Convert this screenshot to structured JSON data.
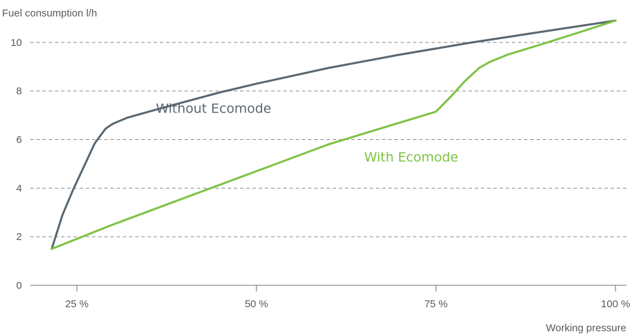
{
  "chart_data": {
    "type": "line",
    "ylabel": "Fuel consumption l/h",
    "xlabel": "Working pressure",
    "xlim": [
      18.5,
      101.5
    ],
    "ylim": [
      0,
      10.9
    ],
    "x_ticks": [
      {
        "value": 25,
        "label": "25 %"
      },
      {
        "value": 50,
        "label": "50 %"
      },
      {
        "value": 75,
        "label": "75 %"
      },
      {
        "value": 100,
        "label": "100 %"
      }
    ],
    "y_ticks": [
      {
        "value": 0,
        "label": "0"
      },
      {
        "value": 2,
        "label": "2"
      },
      {
        "value": 4,
        "label": "4"
      },
      {
        "value": 6,
        "label": "6"
      },
      {
        "value": 8,
        "label": "8"
      },
      {
        "value": 10,
        "label": "10"
      }
    ],
    "grid": "horizontal dashed",
    "series": [
      {
        "name": "Without Ecomode",
        "color": "#5a6771",
        "label_at": {
          "x": 36,
          "y": 7.1
        },
        "points": [
          [
            21.5,
            1.5
          ],
          [
            23,
            2.9
          ],
          [
            24.5,
            3.95
          ],
          [
            26,
            4.9
          ],
          [
            27.5,
            5.85
          ],
          [
            29,
            6.45
          ],
          [
            30,
            6.65
          ],
          [
            32,
            6.9
          ],
          [
            35,
            7.15
          ],
          [
            40,
            7.55
          ],
          [
            45,
            7.95
          ],
          [
            50,
            8.3
          ],
          [
            60,
            8.95
          ],
          [
            70,
            9.5
          ],
          [
            80,
            10.0
          ],
          [
            90,
            10.45
          ],
          [
            100,
            10.9
          ]
        ]
      },
      {
        "name": "With Ecomode",
        "color": "#7cc242",
        "label_at": {
          "x": 65,
          "y": 5.1
        },
        "points": [
          [
            21.5,
            1.5
          ],
          [
            30,
            2.5
          ],
          [
            40,
            3.6
          ],
          [
            50,
            4.7
          ],
          [
            60,
            5.8
          ],
          [
            70,
            6.7
          ],
          [
            75,
            7.15
          ],
          [
            77,
            7.75
          ],
          [
            79,
            8.4
          ],
          [
            81,
            8.95
          ],
          [
            82.5,
            9.2
          ],
          [
            85,
            9.5
          ],
          [
            90,
            9.95
          ],
          [
            95,
            10.42
          ],
          [
            100,
            10.9
          ]
        ]
      }
    ]
  }
}
